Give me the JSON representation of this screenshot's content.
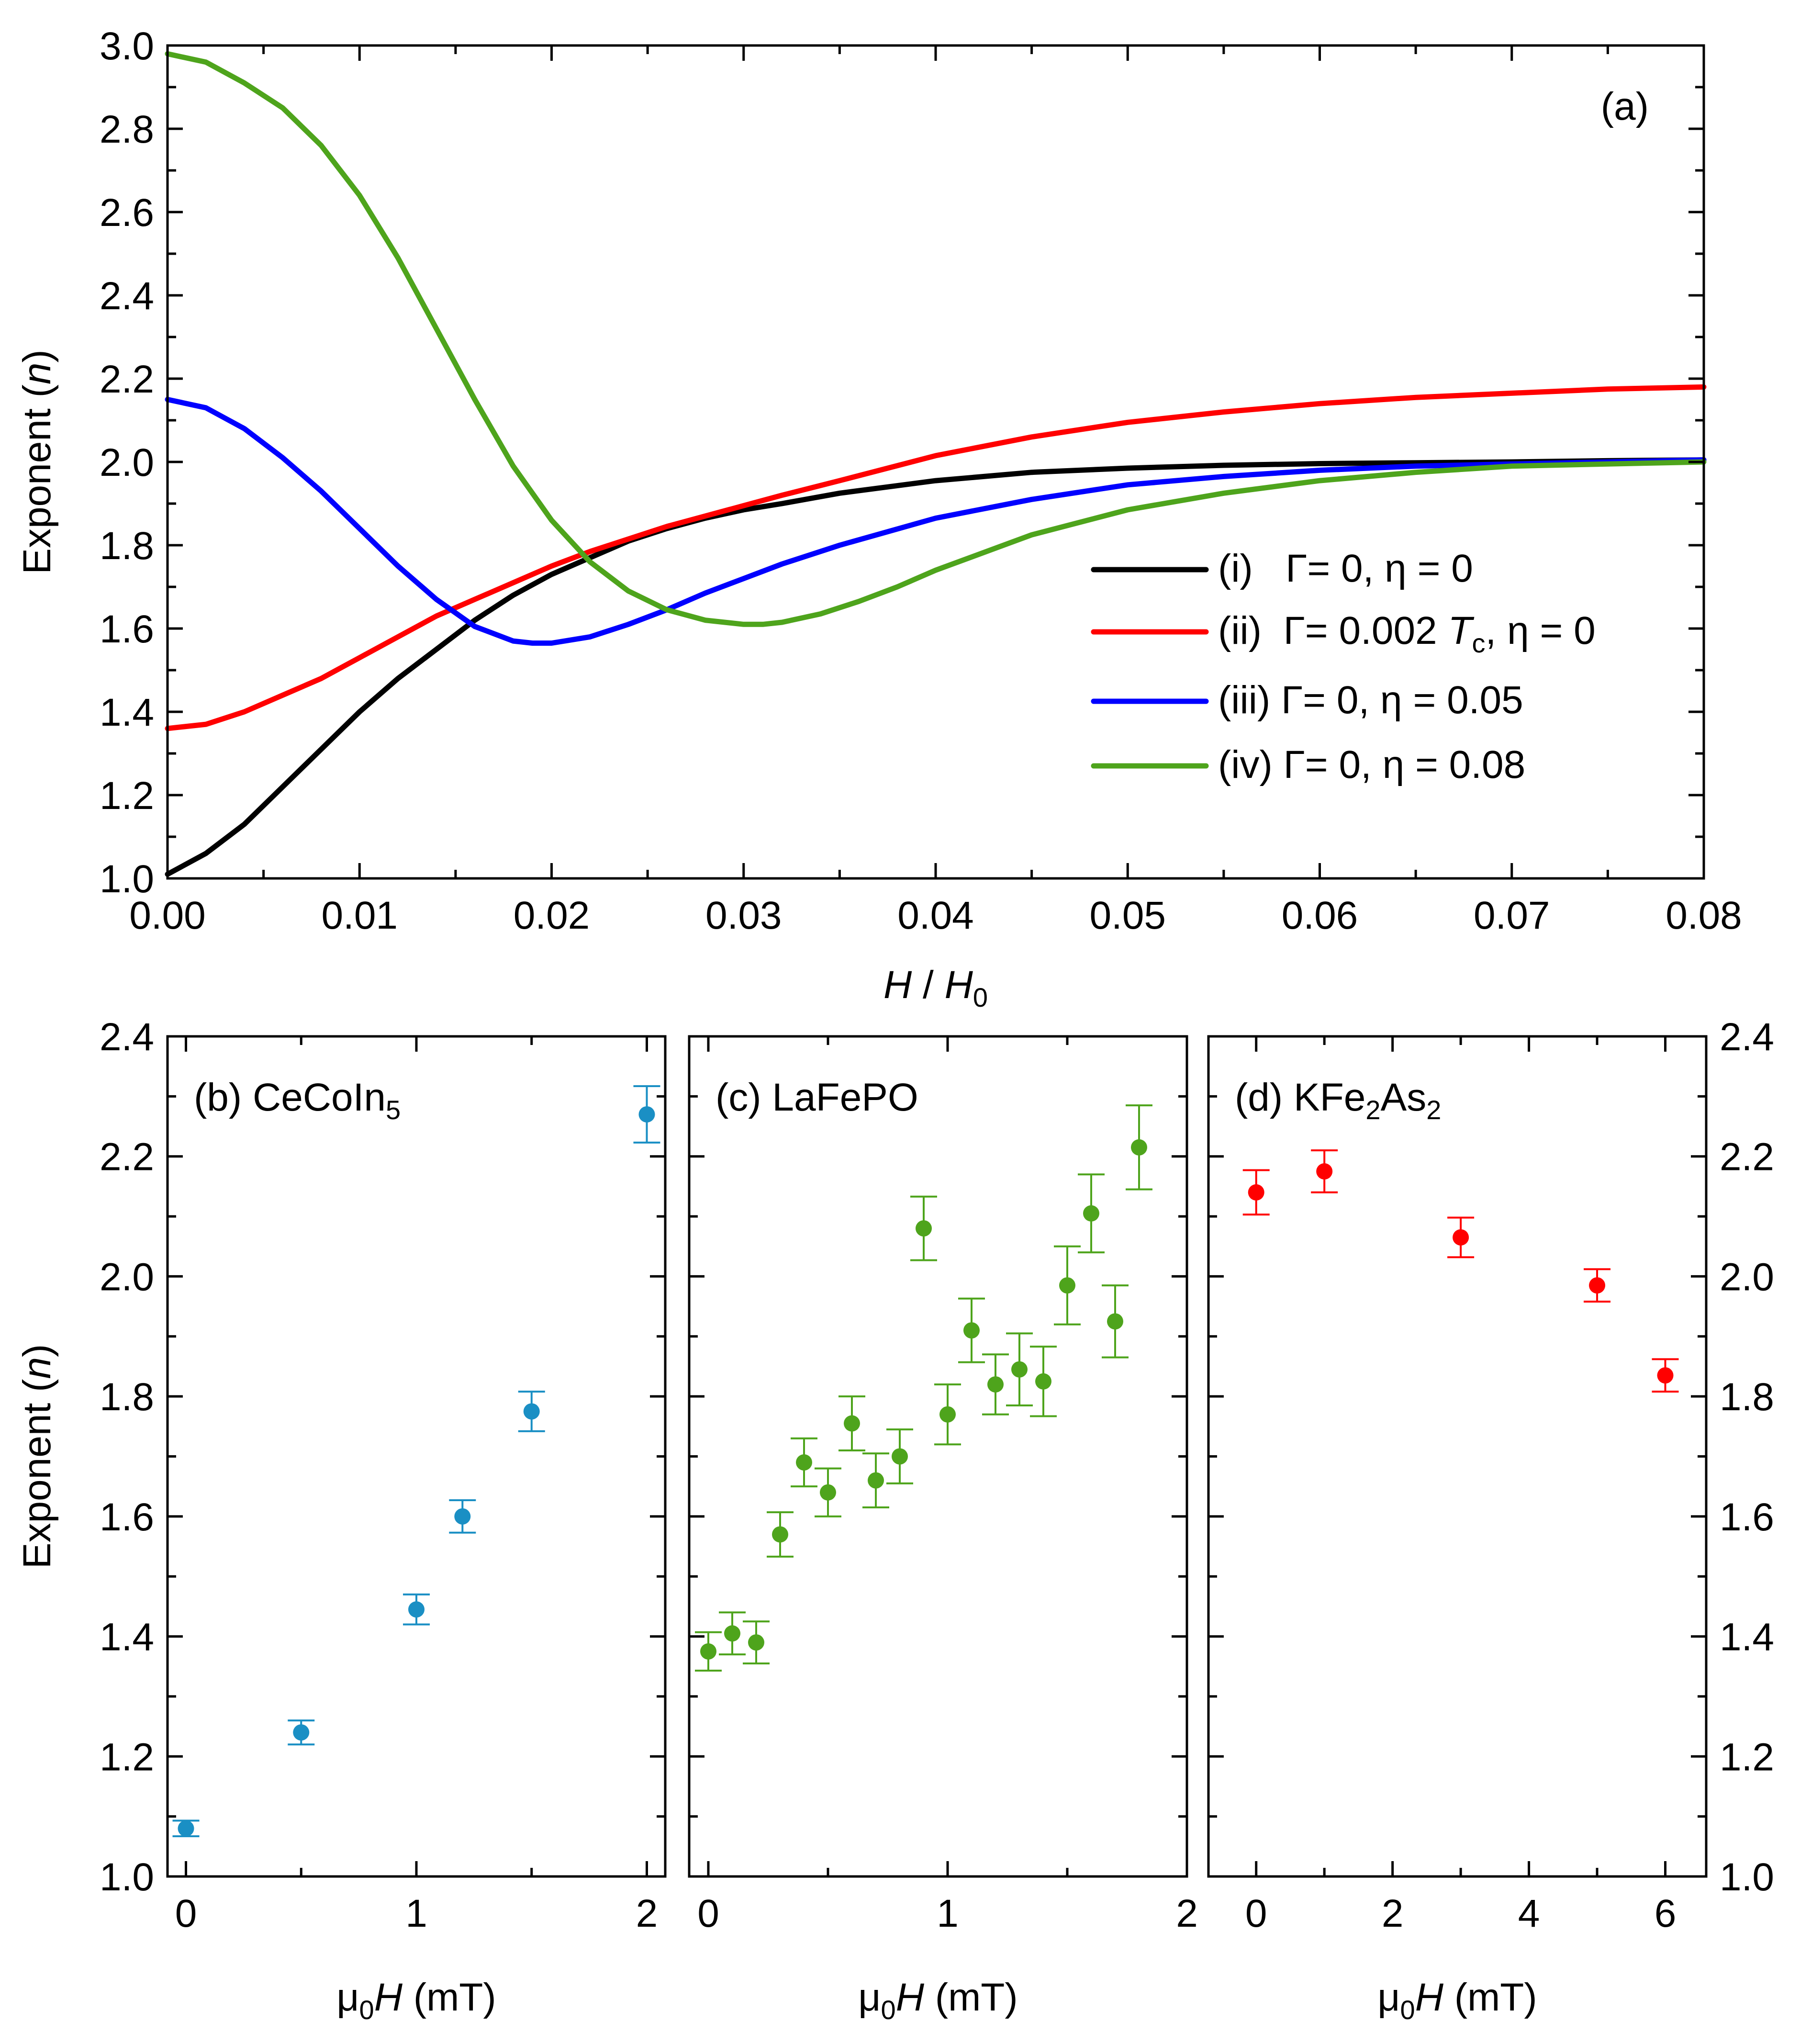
{
  "chart_data": [
    {
      "panel": "a",
      "type": "line",
      "panel_label": "(a)",
      "xlabel": {
        "main": "H",
        "sep": " / ",
        "main2": "H",
        "sub": "0"
      },
      "ylabel": {
        "main": "Exponent (",
        "ital": "n",
        "end": ")"
      },
      "xlim": [
        0,
        0.08
      ],
      "ylim": [
        1.0,
        3.0
      ],
      "x_ticks": [
        0,
        0.01,
        0.02,
        0.03,
        0.04,
        0.05,
        0.06,
        0.07,
        0.08
      ],
      "x_tick_labels": [
        "0.00",
        "0.01",
        "0.02",
        "0.03",
        "0.04",
        "0.05",
        "0.06",
        "0.07",
        "0.08"
      ],
      "y_ticks": [
        1.0,
        1.2,
        1.4,
        1.6,
        1.8,
        2.0,
        2.2,
        2.4,
        2.6,
        2.8,
        3.0
      ],
      "y_tick_labels": [
        "1.0",
        "1.2",
        "1.4",
        "1.6",
        "1.8",
        "2.0",
        "2.2",
        "2.4",
        "2.6",
        "2.8",
        "3.0"
      ],
      "legend_position": "right",
      "series": [
        {
          "name": "(i)   Γ= 0, η = 0",
          "legend": {
            "pre": "(i)   Γ= 0, η = 0"
          },
          "color": "#000000",
          "x": [
            0,
            0.002,
            0.004,
            0.006,
            0.008,
            0.01,
            0.012,
            0.014,
            0.016,
            0.018,
            0.02,
            0.022,
            0.024,
            0.026,
            0.028,
            0.03,
            0.032,
            0.035,
            0.04,
            0.045,
            0.05,
            0.055,
            0.06,
            0.065,
            0.07,
            0.075,
            0.08
          ],
          "y": [
            1.01,
            1.06,
            1.13,
            1.22,
            1.31,
            1.4,
            1.48,
            1.55,
            1.62,
            1.68,
            1.73,
            1.77,
            1.81,
            1.84,
            1.865,
            1.885,
            1.9,
            1.925,
            1.955,
            1.975,
            1.985,
            1.992,
            1.996,
            1.998,
            2.0,
            2.003,
            2.005
          ]
        },
        {
          "name": "(ii)  Γ= 0.002 Tc, η = 0",
          "legend": {
            "pre": "(ii)  Γ= 0.002 ",
            "ital": "T",
            "sub": "c",
            "post": ", η = 0"
          },
          "color": "#ff0000",
          "x": [
            0,
            0.002,
            0.004,
            0.006,
            0.008,
            0.01,
            0.012,
            0.014,
            0.016,
            0.018,
            0.02,
            0.022,
            0.024,
            0.026,
            0.028,
            0.03,
            0.032,
            0.035,
            0.04,
            0.045,
            0.05,
            0.055,
            0.06,
            0.065,
            0.07,
            0.075,
            0.08
          ],
          "y": [
            1.36,
            1.37,
            1.4,
            1.44,
            1.48,
            1.53,
            1.58,
            1.63,
            1.67,
            1.71,
            1.75,
            1.785,
            1.815,
            1.845,
            1.87,
            1.895,
            1.92,
            1.955,
            2.015,
            2.06,
            2.095,
            2.12,
            2.14,
            2.155,
            2.165,
            2.175,
            2.18
          ]
        },
        {
          "name": "(iii) Γ= 0, η = 0.05",
          "legend": {
            "pre": "(iii) Γ= 0, η = 0.05"
          },
          "color": "#0000ff",
          "x": [
            0,
            0.002,
            0.004,
            0.006,
            0.008,
            0.01,
            0.012,
            0.014,
            0.016,
            0.018,
            0.019,
            0.02,
            0.022,
            0.024,
            0.026,
            0.028,
            0.03,
            0.032,
            0.035,
            0.04,
            0.045,
            0.05,
            0.055,
            0.06,
            0.065,
            0.07,
            0.075,
            0.08
          ],
          "y": [
            2.15,
            2.13,
            2.08,
            2.01,
            1.93,
            1.84,
            1.75,
            1.67,
            1.605,
            1.57,
            1.565,
            1.565,
            1.58,
            1.61,
            1.645,
            1.685,
            1.72,
            1.755,
            1.8,
            1.865,
            1.91,
            1.945,
            1.965,
            1.98,
            1.99,
            1.995,
            2.0,
            2.005
          ]
        },
        {
          "name": "(iv) Γ= 0, η = 0.08",
          "legend": {
            "pre": "(iv) Γ= 0, η = 0.08"
          },
          "color": "#4ea41c",
          "x": [
            0,
            0.002,
            0.004,
            0.006,
            0.008,
            0.01,
            0.012,
            0.014,
            0.016,
            0.018,
            0.02,
            0.022,
            0.024,
            0.026,
            0.028,
            0.03,
            0.031,
            0.032,
            0.034,
            0.036,
            0.038,
            0.04,
            0.045,
            0.05,
            0.055,
            0.06,
            0.065,
            0.07,
            0.075,
            0.08
          ],
          "y": [
            2.98,
            2.96,
            2.91,
            2.85,
            2.76,
            2.64,
            2.49,
            2.32,
            2.15,
            1.99,
            1.86,
            1.76,
            1.69,
            1.645,
            1.62,
            1.61,
            1.61,
            1.615,
            1.635,
            1.665,
            1.7,
            1.74,
            1.825,
            1.885,
            1.925,
            1.955,
            1.975,
            1.99,
            1.995,
            2.0
          ]
        }
      ]
    },
    {
      "panel": "b",
      "type": "scatter",
      "panel_label": {
        "pre": "(b) CeCoIn",
        "sub": "5"
      },
      "xlabel": {
        "mu": "μ",
        "sub": "0",
        "ital": "H",
        "post": " (mT)"
      },
      "ylabel": {
        "main": "Exponent (",
        "ital": "n",
        "end": ")"
      },
      "xlim": [
        -0.08,
        2.08
      ],
      "ylim": [
        1.0,
        2.4
      ],
      "x_ticks": [
        0,
        1,
        2
      ],
      "x_tick_labels": [
        "0",
        "1",
        "2"
      ],
      "y_ticks": [
        1.0,
        1.2,
        1.4,
        1.6,
        1.8,
        2.0,
        2.2,
        2.4
      ],
      "y_tick_labels": [
        "1.0",
        "1.2",
        "1.4",
        "1.6",
        "1.8",
        "2.0",
        "2.2",
        "2.4"
      ],
      "color": "#1a8fc4",
      "points": [
        {
          "x": 0,
          "y": 1.08,
          "err": 0.013
        },
        {
          "x": 0.5,
          "y": 1.24,
          "err": 0.02
        },
        {
          "x": 1.0,
          "y": 1.445,
          "err": 0.025
        },
        {
          "x": 1.2,
          "y": 1.6,
          "err": 0.027
        },
        {
          "x": 1.5,
          "y": 1.775,
          "err": 0.033
        },
        {
          "x": 2.0,
          "y": 2.27,
          "err": 0.047
        }
      ]
    },
    {
      "panel": "c",
      "type": "scatter",
      "panel_label": {
        "pre": "(c) LaFePO"
      },
      "xlabel": {
        "mu": "μ",
        "sub": "0",
        "ital": "H",
        "post": " (mT)"
      },
      "xlim": [
        -0.08,
        2.0
      ],
      "ylim": [
        1.0,
        2.4
      ],
      "x_ticks": [
        0,
        1,
        2
      ],
      "x_tick_labels": [
        "0",
        "1",
        "2"
      ],
      "y_ticks": [
        1.0,
        1.2,
        1.4,
        1.6,
        1.8,
        2.0,
        2.2,
        2.4
      ],
      "color": "#4ea41c",
      "points": [
        {
          "x": 0,
          "y": 1.375,
          "err": 0.032
        },
        {
          "x": 0.1,
          "y": 1.405,
          "err": 0.035
        },
        {
          "x": 0.2,
          "y": 1.39,
          "err": 0.035
        },
        {
          "x": 0.3,
          "y": 1.57,
          "err": 0.037
        },
        {
          "x": 0.4,
          "y": 1.69,
          "err": 0.04
        },
        {
          "x": 0.5,
          "y": 1.64,
          "err": 0.04
        },
        {
          "x": 0.6,
          "y": 1.755,
          "err": 0.045
        },
        {
          "x": 0.7,
          "y": 1.66,
          "err": 0.045
        },
        {
          "x": 0.8,
          "y": 1.7,
          "err": 0.045
        },
        {
          "x": 0.9,
          "y": 2.08,
          "err": 0.053
        },
        {
          "x": 1.0,
          "y": 1.77,
          "err": 0.05
        },
        {
          "x": 1.1,
          "y": 1.91,
          "err": 0.053
        },
        {
          "x": 1.2,
          "y": 1.82,
          "err": 0.05
        },
        {
          "x": 1.3,
          "y": 1.845,
          "err": 0.06
        },
        {
          "x": 1.4,
          "y": 1.825,
          "err": 0.058
        },
        {
          "x": 1.5,
          "y": 1.985,
          "err": 0.065
        },
        {
          "x": 1.6,
          "y": 2.105,
          "err": 0.065
        },
        {
          "x": 1.7,
          "y": 1.925,
          "err": 0.06
        },
        {
          "x": 1.8,
          "y": 2.215,
          "err": 0.07
        }
      ]
    },
    {
      "panel": "d",
      "type": "scatter",
      "panel_label": {
        "pre": "(d) KFe",
        "sub": "2",
        "mid": "As",
        "sub2": "2"
      },
      "xlabel": {
        "mu": "μ",
        "sub": "0",
        "ital": "H",
        "post": " (mT)"
      },
      "xlim": [
        -0.7,
        6.6
      ],
      "ylim": [
        1.0,
        2.4
      ],
      "x_ticks": [
        0,
        2,
        4,
        6
      ],
      "x_tick_labels": [
        "0",
        "2",
        "4",
        "6"
      ],
      "y_ticks": [
        1.0,
        1.2,
        1.4,
        1.6,
        1.8,
        2.0,
        2.2,
        2.4
      ],
      "y_tick_labels": [
        "1.0",
        "1.2",
        "1.4",
        "1.6",
        "1.8",
        "2.0",
        "2.2",
        "2.4"
      ],
      "color": "#ff0000",
      "points": [
        {
          "x": 0,
          "y": 2.14,
          "err": 0.037
        },
        {
          "x": 1,
          "y": 2.175,
          "err": 0.035
        },
        {
          "x": 3,
          "y": 2.065,
          "err": 0.033
        },
        {
          "x": 5,
          "y": 1.985,
          "err": 0.027
        },
        {
          "x": 6,
          "y": 1.835,
          "err": 0.027
        }
      ]
    }
  ]
}
